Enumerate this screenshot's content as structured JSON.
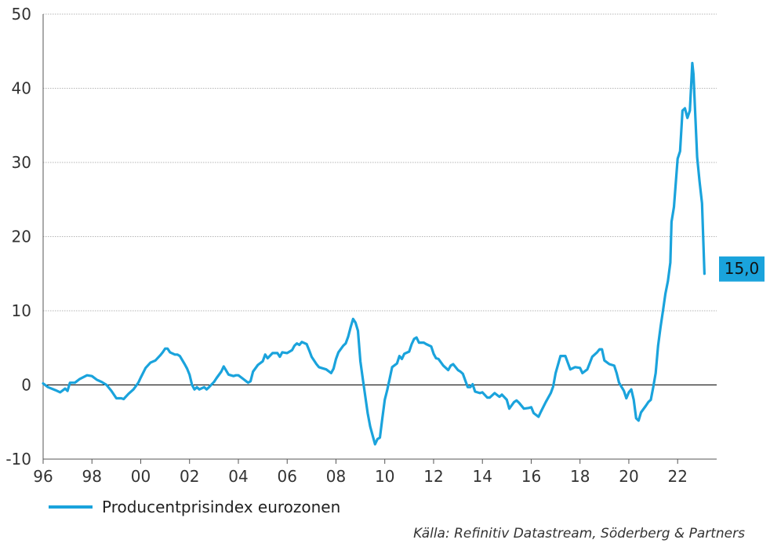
{
  "chart_data": {
    "type": "line",
    "xlim": [
      1996,
      2023.6
    ],
    "ylim": [
      -10,
      50
    ],
    "x_ticks": [
      {
        "value": 1996,
        "label": "96"
      },
      {
        "value": 1998,
        "label": "98"
      },
      {
        "value": 2000,
        "label": "00"
      },
      {
        "value": 2002,
        "label": "02"
      },
      {
        "value": 2004,
        "label": "04"
      },
      {
        "value": 2006,
        "label": "06"
      },
      {
        "value": 2008,
        "label": "08"
      },
      {
        "value": 2010,
        "label": "10"
      },
      {
        "value": 2012,
        "label": "12"
      },
      {
        "value": 2014,
        "label": "14"
      },
      {
        "value": 2016,
        "label": "16"
      },
      {
        "value": 2018,
        "label": "18"
      },
      {
        "value": 2020,
        "label": "20"
      },
      {
        "value": 2022,
        "label": "22"
      }
    ],
    "y_ticks": [
      {
        "value": -10,
        "label": "-10"
      },
      {
        "value": 0,
        "label": "0"
      },
      {
        "value": 10,
        "label": "10"
      },
      {
        "value": 20,
        "label": "20"
      },
      {
        "value": 30,
        "label": "30"
      },
      {
        "value": 40,
        "label": "40"
      },
      {
        "value": 50,
        "label": "50"
      }
    ],
    "grid": "horizontal",
    "legend_position": "bottom-left",
    "series": [
      {
        "name": "Producentprisindex eurozonen",
        "color": "#1aa3dc",
        "points": [
          [
            1996.0,
            0.2
          ],
          [
            1996.2,
            -0.3
          ],
          [
            1996.5,
            -0.7
          ],
          [
            1996.7,
            -1.0
          ],
          [
            1996.9,
            -0.5
          ],
          [
            1997.0,
            -0.8
          ],
          [
            1997.1,
            0.3
          ],
          [
            1997.3,
            0.3
          ],
          [
            1997.5,
            0.8
          ],
          [
            1997.8,
            1.3
          ],
          [
            1998.0,
            1.2
          ],
          [
            1998.2,
            0.7
          ],
          [
            1998.4,
            0.4
          ],
          [
            1998.6,
            0.0
          ],
          [
            1998.8,
            -0.8
          ],
          [
            1999.0,
            -1.8
          ],
          [
            1999.2,
            -1.8
          ],
          [
            1999.3,
            -1.9
          ],
          [
            1999.5,
            -1.2
          ],
          [
            1999.7,
            -0.6
          ],
          [
            1999.9,
            0.3
          ],
          [
            2000.0,
            1.0
          ],
          [
            2000.2,
            2.3
          ],
          [
            2000.4,
            3.0
          ],
          [
            2000.6,
            3.3
          ],
          [
            2000.8,
            4.0
          ],
          [
            2000.9,
            4.4
          ],
          [
            2001.0,
            4.9
          ],
          [
            2001.1,
            4.9
          ],
          [
            2001.2,
            4.4
          ],
          [
            2001.4,
            4.1
          ],
          [
            2001.5,
            4.1
          ],
          [
            2001.6,
            3.9
          ],
          [
            2001.8,
            2.8
          ],
          [
            2001.9,
            2.2
          ],
          [
            2002.0,
            1.4
          ],
          [
            2002.1,
            0.0
          ],
          [
            2002.2,
            -0.6
          ],
          [
            2002.3,
            -0.3
          ],
          [
            2002.4,
            -0.6
          ],
          [
            2002.6,
            -0.3
          ],
          [
            2002.7,
            -0.6
          ],
          [
            2002.8,
            -0.3
          ],
          [
            2003.0,
            0.4
          ],
          [
            2003.1,
            0.9
          ],
          [
            2003.3,
            1.8
          ],
          [
            2003.4,
            2.5
          ],
          [
            2003.6,
            1.4
          ],
          [
            2003.8,
            1.2
          ],
          [
            2003.9,
            1.3
          ],
          [
            2004.0,
            1.3
          ],
          [
            2004.2,
            0.8
          ],
          [
            2004.4,
            0.3
          ],
          [
            2004.5,
            0.5
          ],
          [
            2004.6,
            1.8
          ],
          [
            2004.8,
            2.7
          ],
          [
            2005.0,
            3.2
          ],
          [
            2005.1,
            4.1
          ],
          [
            2005.2,
            3.6
          ],
          [
            2005.4,
            4.3
          ],
          [
            2005.6,
            4.3
          ],
          [
            2005.7,
            3.8
          ],
          [
            2005.8,
            4.4
          ],
          [
            2006.0,
            4.3
          ],
          [
            2006.2,
            4.7
          ],
          [
            2006.3,
            5.3
          ],
          [
            2006.4,
            5.6
          ],
          [
            2006.5,
            5.4
          ],
          [
            2006.6,
            5.8
          ],
          [
            2006.8,
            5.5
          ],
          [
            2006.9,
            4.7
          ],
          [
            2007.0,
            3.8
          ],
          [
            2007.2,
            2.8
          ],
          [
            2007.3,
            2.4
          ],
          [
            2007.4,
            2.3
          ],
          [
            2007.6,
            2.1
          ],
          [
            2007.8,
            1.6
          ],
          [
            2007.9,
            2.2
          ],
          [
            2008.0,
            3.5
          ],
          [
            2008.1,
            4.4
          ],
          [
            2008.3,
            5.3
          ],
          [
            2008.4,
            5.6
          ],
          [
            2008.5,
            6.5
          ],
          [
            2008.6,
            7.8
          ],
          [
            2008.7,
            8.9
          ],
          [
            2008.8,
            8.4
          ],
          [
            2008.9,
            7.3
          ],
          [
            2009.0,
            3.2
          ],
          [
            2009.1,
            0.8
          ],
          [
            2009.2,
            -1.5
          ],
          [
            2009.3,
            -3.8
          ],
          [
            2009.4,
            -5.6
          ],
          [
            2009.5,
            -6.8
          ],
          [
            2009.6,
            -8.0
          ],
          [
            2009.7,
            -7.3
          ],
          [
            2009.8,
            -7.1
          ],
          [
            2009.9,
            -4.5
          ],
          [
            2010.0,
            -2.0
          ],
          [
            2010.1,
            -0.7
          ],
          [
            2010.2,
            0.8
          ],
          [
            2010.3,
            2.4
          ],
          [
            2010.5,
            2.9
          ],
          [
            2010.6,
            3.9
          ],
          [
            2010.7,
            3.5
          ],
          [
            2010.8,
            4.2
          ],
          [
            2011.0,
            4.5
          ],
          [
            2011.1,
            5.5
          ],
          [
            2011.2,
            6.2
          ],
          [
            2011.3,
            6.4
          ],
          [
            2011.4,
            5.7
          ],
          [
            2011.6,
            5.7
          ],
          [
            2011.7,
            5.5
          ],
          [
            2011.9,
            5.2
          ],
          [
            2012.0,
            4.2
          ],
          [
            2012.1,
            3.6
          ],
          [
            2012.2,
            3.5
          ],
          [
            2012.4,
            2.6
          ],
          [
            2012.6,
            2.0
          ],
          [
            2012.7,
            2.6
          ],
          [
            2012.8,
            2.8
          ],
          [
            2013.0,
            2.0
          ],
          [
            2013.1,
            1.8
          ],
          [
            2013.2,
            1.5
          ],
          [
            2013.4,
            -0.3
          ],
          [
            2013.5,
            -0.3
          ],
          [
            2013.6,
            0.1
          ],
          [
            2013.7,
            -0.9
          ],
          [
            2013.9,
            -1.1
          ],
          [
            2014.0,
            -1.0
          ],
          [
            2014.2,
            -1.7
          ],
          [
            2014.3,
            -1.7
          ],
          [
            2014.5,
            -1.1
          ],
          [
            2014.7,
            -1.6
          ],
          [
            2014.8,
            -1.3
          ],
          [
            2015.0,
            -2.0
          ],
          [
            2015.1,
            -3.2
          ],
          [
            2015.3,
            -2.3
          ],
          [
            2015.4,
            -2.1
          ],
          [
            2015.5,
            -2.4
          ],
          [
            2015.7,
            -3.2
          ],
          [
            2015.9,
            -3.1
          ],
          [
            2016.0,
            -3.0
          ],
          [
            2016.1,
            -3.8
          ],
          [
            2016.3,
            -4.3
          ],
          [
            2016.4,
            -3.6
          ],
          [
            2016.6,
            -2.3
          ],
          [
            2016.8,
            -1.1
          ],
          [
            2016.9,
            -0.2
          ],
          [
            2017.0,
            1.6
          ],
          [
            2017.2,
            3.9
          ],
          [
            2017.3,
            3.9
          ],
          [
            2017.4,
            3.9
          ],
          [
            2017.6,
            2.1
          ],
          [
            2017.8,
            2.4
          ],
          [
            2018.0,
            2.3
          ],
          [
            2018.1,
            1.6
          ],
          [
            2018.3,
            2.1
          ],
          [
            2018.5,
            3.8
          ],
          [
            2018.7,
            4.4
          ],
          [
            2018.8,
            4.8
          ],
          [
            2018.9,
            4.8
          ],
          [
            2019.0,
            3.3
          ],
          [
            2019.2,
            2.8
          ],
          [
            2019.4,
            2.6
          ],
          [
            2019.5,
            1.6
          ],
          [
            2019.6,
            0.3
          ],
          [
            2019.8,
            -0.8
          ],
          [
            2019.9,
            -1.8
          ],
          [
            2020.0,
            -1.0
          ],
          [
            2020.1,
            -0.6
          ],
          [
            2020.2,
            -2.0
          ],
          [
            2020.3,
            -4.5
          ],
          [
            2020.4,
            -4.8
          ],
          [
            2020.5,
            -3.7
          ],
          [
            2020.7,
            -2.8
          ],
          [
            2020.8,
            -2.3
          ],
          [
            2020.9,
            -2.0
          ],
          [
            2021.0,
            -0.3
          ],
          [
            2021.1,
            1.6
          ],
          [
            2021.2,
            5.3
          ],
          [
            2021.3,
            7.8
          ],
          [
            2021.4,
            10.0
          ],
          [
            2021.5,
            12.3
          ],
          [
            2021.6,
            14.0
          ],
          [
            2021.7,
            16.5
          ],
          [
            2021.75,
            22.0
          ],
          [
            2021.85,
            24.0
          ],
          [
            2022.0,
            30.5
          ],
          [
            2022.1,
            31.5
          ],
          [
            2022.2,
            37.0
          ],
          [
            2022.3,
            37.3
          ],
          [
            2022.4,
            36.0
          ],
          [
            2022.5,
            37.0
          ],
          [
            2022.6,
            43.4
          ],
          [
            2022.65,
            41.9
          ],
          [
            2022.8,
            30.7
          ],
          [
            2022.9,
            27.4
          ],
          [
            2023.0,
            24.5
          ],
          [
            2023.1,
            15.0
          ]
        ]
      }
    ],
    "annotations": [
      {
        "label": "15,0",
        "x": 2023.1,
        "y": 15.0
      }
    ],
    "source_note": "Källa: Refinitiv Datastream, Söderberg & Partners"
  }
}
